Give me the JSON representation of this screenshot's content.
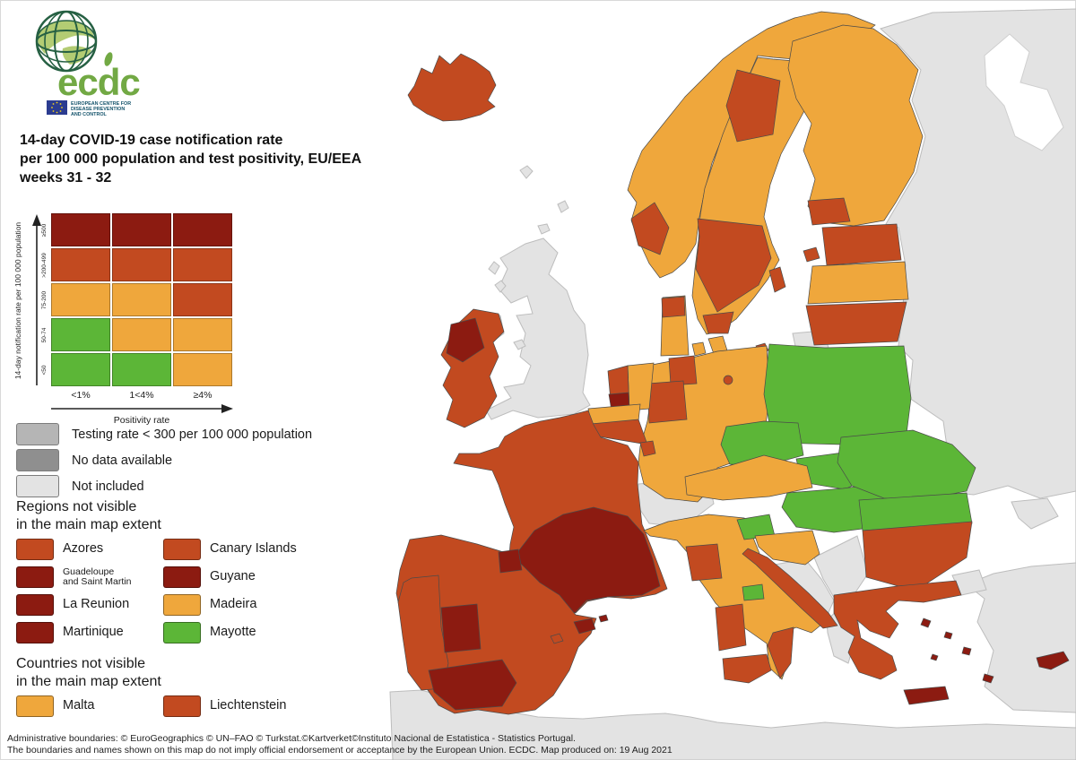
{
  "logo": {
    "wordmark": "ecdc",
    "org_lines": [
      "EUROPEAN CENTRE FOR",
      "DISEASE PREVENTION",
      "AND CONTROL"
    ]
  },
  "title": {
    "lines": [
      "14-day COVID-19 case notification rate",
      "per 100 000 population and test positivity, EU/EEA",
      "weeks 31 - 32"
    ]
  },
  "palette": {
    "orange": "#EFA73C",
    "red": "#C24A20",
    "dark_red": "#8C1B11",
    "green": "#5CB637",
    "not_included": "#E3E3E3",
    "testing_low": "#B5B5B5",
    "no_data": "#8F8F8F",
    "sea": "#FFFFFF"
  },
  "matrix": {
    "y_title": "14-day notification rate per 100 000 population",
    "x_title": "Positivity rate",
    "x_labels": [
      "<1%",
      "1<4%",
      "≥4%"
    ],
    "rows": [
      {
        "label": "≥500",
        "cells": [
          "dark_red",
          "dark_red",
          "dark_red"
        ]
      },
      {
        "label": ">200-499",
        "cells": [
          "red",
          "red",
          "red"
        ]
      },
      {
        "label": "75-200",
        "cells": [
          "orange",
          "orange",
          "red"
        ]
      },
      {
        "label": "50-74",
        "cells": [
          "green",
          "orange",
          "orange"
        ]
      },
      {
        "label": "<50",
        "cells": [
          "green",
          "green",
          "orange"
        ]
      }
    ]
  },
  "map_notes": [
    {
      "label": "Testing rate < 300 per 100 000 population",
      "color": "testing_low"
    },
    {
      "label": "No data available",
      "color": "no_data"
    },
    {
      "label": "Not included",
      "color": "not_included"
    }
  ],
  "regions_section": {
    "heading_lines": [
      "Regions not visible",
      "in the main map extent"
    ],
    "items": [
      {
        "label": "Azores",
        "color": "red"
      },
      {
        "label": "Canary Islands",
        "color": "red"
      },
      {
        "label": "Guadeloupe\nand Saint Martin",
        "color": "dark_red",
        "small": true
      },
      {
        "label": "Guyane",
        "color": "dark_red"
      },
      {
        "label": "La Reunion",
        "color": "dark_red"
      },
      {
        "label": "Madeira",
        "color": "orange"
      },
      {
        "label": "Martinique",
        "color": "dark_red"
      },
      {
        "label": "Mayotte",
        "color": "green"
      }
    ]
  },
  "countries_section": {
    "heading_lines": [
      "Countries not visible",
      "in the main map extent"
    ],
    "items": [
      {
        "label": "Malta",
        "color": "orange"
      },
      {
        "label": "Liechtenstein",
        "color": "red"
      }
    ]
  },
  "footer": {
    "lines": [
      "Administrative boundaries: © EuroGeographics © UN–FAO © Turkstat.©Kartverket©Instituto Nacional de Estatistica - Statistics Portugal.",
      "The boundaries and names shown on this map do not imply official endorsement or acceptance by the European Union. ECDC. Map produced on: 19 Aug 2021"
    ]
  },
  "map": {
    "regions": [
      {
        "id": "russia_east",
        "name": "Russia / Belarus / Ukraine",
        "color": "not_included"
      },
      {
        "id": "white_sea",
        "name": "White Sea",
        "color": "sea"
      },
      {
        "id": "crimea",
        "name": "Crimea",
        "color": "not_included"
      },
      {
        "id": "turkey",
        "name": "Turkey",
        "color": "not_included"
      },
      {
        "id": "turkish_thrace",
        "name": "Turkish Thrace",
        "color": "not_included"
      },
      {
        "id": "north_africa",
        "name": "North Africa",
        "color": "not_included"
      },
      {
        "id": "uk",
        "name": "United Kingdom",
        "color": "not_included"
      },
      {
        "id": "northern_ireland",
        "name": "Northern Ireland",
        "color": "not_included"
      },
      {
        "id": "shetland",
        "name": "Shetland",
        "color": "not_included"
      },
      {
        "id": "orkney",
        "name": "Orkney",
        "color": "not_included"
      },
      {
        "id": "hebrides1",
        "name": "Hebrides",
        "color": "not_included"
      },
      {
        "id": "hebrides2",
        "name": "Hebrides",
        "color": "not_included"
      },
      {
        "id": "isle_of_man",
        "name": "Isle of Man",
        "color": "not_included"
      },
      {
        "id": "faroe",
        "name": "Faroe Islands",
        "color": "not_included"
      },
      {
        "id": "kaliningrad",
        "name": "Kaliningrad",
        "color": "not_included"
      },
      {
        "id": "switzerland",
        "name": "Switzerland",
        "color": "not_included"
      },
      {
        "id": "bosnia",
        "name": "Bosnia and Herzegovina",
        "color": "not_included"
      },
      {
        "id": "serbia",
        "name": "Serbia",
        "color": "not_included"
      },
      {
        "id": "montenegro_albania",
        "name": "Montenegro / Albania",
        "color": "not_included"
      },
      {
        "id": "north_macedonia",
        "name": "North Macedonia",
        "color": "not_included"
      },
      {
        "id": "iceland",
        "name": "Iceland",
        "color": "red"
      },
      {
        "id": "ireland",
        "name": "Ireland",
        "color": "red"
      },
      {
        "id": "ireland_northwest",
        "name": "Ireland north-west",
        "color": "dark_red"
      },
      {
        "id": "norway",
        "name": "Norway",
        "color": "orange"
      },
      {
        "id": "norway_west",
        "name": "Western Norway",
        "color": "red"
      },
      {
        "id": "sweden",
        "name": "Sweden",
        "color": "orange"
      },
      {
        "id": "sweden_north",
        "name": "Northern Sweden",
        "color": "red"
      },
      {
        "id": "sweden_central",
        "name": "Central Sweden",
        "color": "red"
      },
      {
        "id": "sweden_south",
        "name": "Southern Sweden",
        "color": "red"
      },
      {
        "id": "gotland",
        "name": "Gotland",
        "color": "red"
      },
      {
        "id": "finland",
        "name": "Finland",
        "color": "orange"
      },
      {
        "id": "finland_southwest",
        "name": "South-west Finland",
        "color": "red"
      },
      {
        "id": "estonia",
        "name": "Estonia",
        "color": "red"
      },
      {
        "id": "estonia_islands",
        "name": "Estonian islands",
        "color": "red"
      },
      {
        "id": "latvia",
        "name": "Latvia",
        "color": "orange"
      },
      {
        "id": "lithuania",
        "name": "Lithuania",
        "color": "red"
      },
      {
        "id": "denmark_jutland",
        "name": "Jutland",
        "color": "orange"
      },
      {
        "id": "denmark_north",
        "name": "North Jutland",
        "color": "red"
      },
      {
        "id": "denmark_funen",
        "name": "Funen",
        "color": "orange"
      },
      {
        "id": "denmark_zealand",
        "name": "Zealand",
        "color": "orange"
      },
      {
        "id": "bornholm",
        "name": "Bornholm",
        "color": "red"
      },
      {
        "id": "germany",
        "name": "Germany",
        "color": "orange"
      },
      {
        "id": "schleswig_holstein",
        "name": "Schleswig-Holstein",
        "color": "red"
      },
      {
        "id": "nrw",
        "name": "North Rhine-Westphalia",
        "color": "red"
      },
      {
        "id": "berlin",
        "name": "Berlin",
        "color": "red"
      },
      {
        "id": "netherlands_east",
        "name": "Netherlands east",
        "color": "orange"
      },
      {
        "id": "netherlands_west",
        "name": "Netherlands west",
        "color": "red"
      },
      {
        "id": "netherlands_sw",
        "name": "Netherlands south-west",
        "color": "dark_red"
      },
      {
        "id": "belgium_flanders",
        "name": "Flanders",
        "color": "orange"
      },
      {
        "id": "belgium_wallonia",
        "name": "Wallonia",
        "color": "red"
      },
      {
        "id": "luxembourg",
        "name": "Luxembourg",
        "color": "red"
      },
      {
        "id": "france",
        "name": "France",
        "color": "red"
      },
      {
        "id": "france_south",
        "name": "Southern France",
        "color": "dark_red"
      },
      {
        "id": "corsica",
        "name": "Corsica",
        "color": "dark_red"
      },
      {
        "id": "spain",
        "name": "Spain",
        "color": "red"
      },
      {
        "id": "portugal",
        "name": "Portugal",
        "color": "red"
      },
      {
        "id": "extremadura",
        "name": "Extremadura",
        "color": "dark_red"
      },
      {
        "id": "andalusia",
        "name": "Andalusia",
        "color": "dark_red"
      },
      {
        "id": "spain_north",
        "name": "Northern Spain region",
        "color": "dark_red"
      },
      {
        "id": "mallorca",
        "name": "Mallorca",
        "color": "dark_red"
      },
      {
        "id": "menorca",
        "name": "Menorca",
        "color": "dark_red"
      },
      {
        "id": "ibiza",
        "name": "Ibiza",
        "color": "red"
      },
      {
        "id": "italy",
        "name": "Italy",
        "color": "orange"
      },
      {
        "id": "tuscany",
        "name": "Tuscany",
        "color": "red"
      },
      {
        "id": "molise",
        "name": "Molise",
        "color": "green"
      },
      {
        "id": "calabria",
        "name": "Calabria",
        "color": "red"
      },
      {
        "id": "sicily",
        "name": "Sicily",
        "color": "red"
      },
      {
        "id": "sardinia",
        "name": "Sardinia",
        "color": "red"
      },
      {
        "id": "austria",
        "name": "Austria",
        "color": "orange"
      },
      {
        "id": "czechia",
        "name": "Czechia",
        "color": "green"
      },
      {
        "id": "slovakia",
        "name": "Slovakia",
        "color": "green"
      },
      {
        "id": "hungary",
        "name": "Hungary",
        "color": "green"
      },
      {
        "id": "slovenia",
        "name": "Slovenia",
        "color": "green"
      },
      {
        "id": "poland",
        "name": "Poland",
        "color": "green"
      },
      {
        "id": "croatia_inland",
        "name": "Croatia inland",
        "color": "orange"
      },
      {
        "id": "croatia_coast",
        "name": "Croatia coast",
        "color": "red"
      },
      {
        "id": "romania",
        "name": "Romania",
        "color": "green"
      },
      {
        "id": "bulgaria_north",
        "name": "Northern Bulgaria",
        "color": "green"
      },
      {
        "id": "bulgaria_south",
        "name": "Southern Bulgaria",
        "color": "red"
      },
      {
        "id": "greece",
        "name": "Greece",
        "color": "red"
      },
      {
        "id": "crete",
        "name": "Crete",
        "color": "dark_red"
      },
      {
        "id": "aegean1",
        "name": "Aegean island",
        "color": "dark_red"
      },
      {
        "id": "aegean2",
        "name": "Aegean island",
        "color": "dark_red"
      },
      {
        "id": "aegean3",
        "name": "Aegean island",
        "color": "dark_red"
      },
      {
        "id": "aegean4",
        "name": "Aegean island",
        "color": "dark_red"
      },
      {
        "id": "aegean5",
        "name": "Rhodes",
        "color": "dark_red"
      },
      {
        "id": "cyprus",
        "name": "Cyprus",
        "color": "dark_red"
      }
    ]
  }
}
